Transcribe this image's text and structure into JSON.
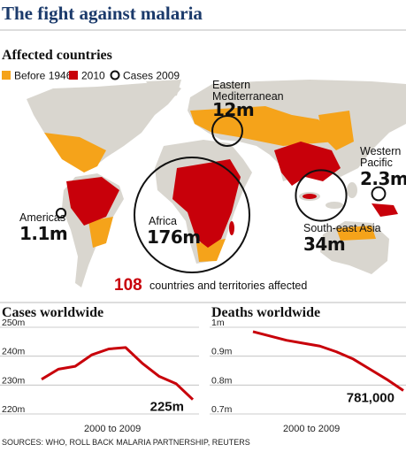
{
  "title": "The fight against malaria",
  "map": {
    "title": "Affected countries",
    "legend": [
      {
        "name": "Before 1946",
        "color": "#f5a31a"
      },
      {
        "name": "2010",
        "color": "#c8000a"
      },
      {
        "name": "Cases 2009"
      }
    ],
    "bubbles": [
      {
        "region": "Americas",
        "value": 1.1,
        "label": "1.1m"
      },
      {
        "region": "Africa",
        "value": 176,
        "label": "176m"
      },
      {
        "region": "Eastern Mediterranean",
        "value": 12,
        "label": "12m"
      },
      {
        "region": "South-east Asia",
        "value": 34,
        "label": "34m"
      },
      {
        "region": "Western Pacific",
        "value": 2.3,
        "label": "2.3m"
      }
    ],
    "countries_count": 108,
    "countries_text": "countries and territories affected"
  },
  "chart_data": [
    {
      "type": "line",
      "title": "Cases worldwide",
      "x_label": "2000 to 2009",
      "color": "#c8000a",
      "values": [
        232,
        235.5,
        236.5,
        240.5,
        242.5,
        243,
        237.5,
        233,
        230.5,
        225
      ],
      "value_labels": [
        null,
        null,
        null,
        null,
        null,
        null,
        null,
        null,
        null,
        "225m"
      ],
      "ylim": [
        220,
        250
      ],
      "yticks": [
        {
          "value": 250,
          "label": "250m"
        },
        {
          "value": 240,
          "label": "240m"
        },
        {
          "value": 230,
          "label": "230m"
        },
        {
          "value": 220,
          "label": "220m"
        }
      ],
      "grid": true
    },
    {
      "type": "line",
      "title": "Deaths worldwide",
      "x_label": "2000 to 2009",
      "color": "#c8000a",
      "values": [
        0.985,
        0.97,
        0.955,
        0.945,
        0.935,
        0.915,
        0.89,
        0.855,
        0.82,
        0.781
      ],
      "value_labels": [
        null,
        null,
        null,
        null,
        null,
        null,
        null,
        null,
        null,
        "781,000"
      ],
      "ylim": [
        0.7,
        1
      ],
      "yticks": [
        {
          "value": 1,
          "label": "1m"
        },
        {
          "value": 0.9,
          "label": "0.9m"
        },
        {
          "value": 0.8,
          "label": "0.8m"
        },
        {
          "value": 0.7,
          "label": "0.7m"
        }
      ],
      "grid": true
    }
  ],
  "source": "SOURCES: WHO, ROLL BACK MALARIA PARTNERSHIP, REUTERS"
}
